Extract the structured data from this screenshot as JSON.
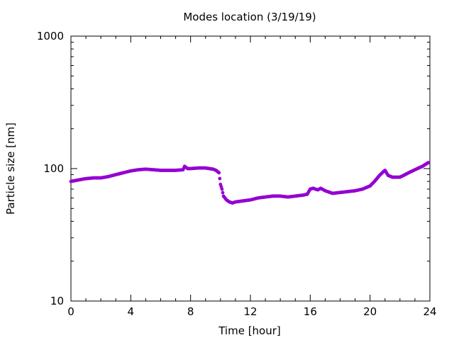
{
  "chart_data": {
    "type": "scatter",
    "title": "Modes location (3/19/19)",
    "xlabel": "Time [hour]",
    "ylabel": "Particle size [nm]",
    "xlim": [
      0,
      24
    ],
    "ylim": [
      10,
      1000
    ],
    "yscale": "log",
    "x_ticks": [
      {
        "value": 0,
        "label": "0"
      },
      {
        "value": 4,
        "label": "4"
      },
      {
        "value": 8,
        "label": "8"
      },
      {
        "value": 12,
        "label": "12"
      },
      {
        "value": 16,
        "label": "16"
      },
      {
        "value": 20,
        "label": "20"
      },
      {
        "value": 24,
        "label": "24"
      }
    ],
    "y_ticks": [
      {
        "value": 10,
        "label": "10"
      },
      {
        "value": 100,
        "label": "100"
      },
      {
        "value": 1000,
        "label": "1000"
      }
    ],
    "grid": false,
    "marker_color": "#9400d3",
    "series": [
      {
        "x": [
          0,
          0.5,
          1,
          1.5,
          2,
          2.5,
          3,
          3.5,
          4,
          4.5,
          5,
          5.5,
          6,
          6.5,
          7,
          7.5,
          7.6,
          7.8,
          8,
          8.5,
          9,
          9.5,
          9.7,
          9.9,
          10,
          10.1,
          10.2,
          10.4,
          10.6,
          10.8,
          11,
          11.5,
          12,
          12.5,
          13,
          13.5,
          14,
          14.5,
          15,
          15.5,
          15.8,
          16,
          16.2,
          16.5,
          16.7,
          17,
          17.5,
          18,
          18.5,
          19,
          19.5,
          20,
          20.3,
          20.6,
          20.9,
          21,
          21.2,
          21.5,
          22,
          22.5,
          23,
          23.5,
          23.9
        ],
        "y": [
          80,
          82,
          84,
          85,
          85,
          87,
          90,
          93,
          96,
          98,
          99,
          98,
          97,
          97,
          97,
          98,
          104,
          100,
          100,
          101,
          101,
          99,
          97,
          93,
          76,
          70,
          62,
          58,
          56,
          55,
          56,
          57,
          58,
          60,
          61,
          62,
          62,
          61,
          62,
          63,
          64,
          70,
          71,
          69,
          71,
          68,
          65,
          66,
          67,
          68,
          70,
          74,
          80,
          88,
          95,
          97,
          89,
          86,
          86,
          92,
          98,
          104,
          111
        ]
      }
    ]
  }
}
